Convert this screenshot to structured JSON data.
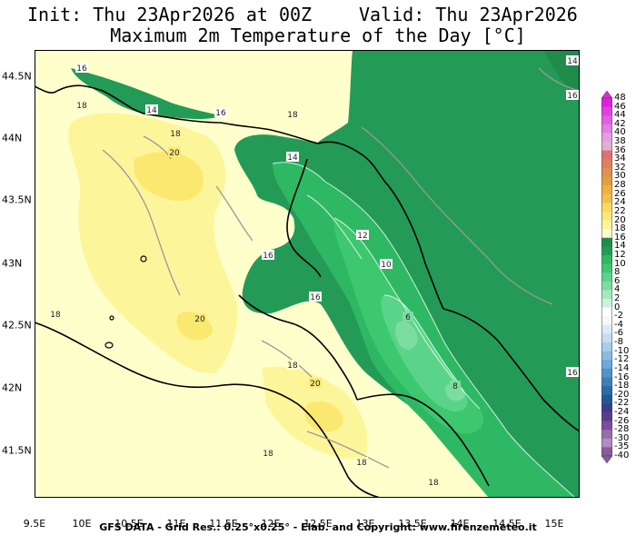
{
  "header": {
    "init": "Init: Thu 23Apr2026 at 00Z",
    "valid": "Valid: Thu 23Apr2026",
    "subtitle": "Maximum 2m Temperature of the Day [°C]"
  },
  "footer": {
    "credits": "GFS DATA - Grid Res.: 0.25°x0.25° - Elab. and Copyright: www.firenzemeteo.it"
  },
  "axes": {
    "x_ticks": [
      "9.5E",
      "10E",
      "10.5E",
      "11E",
      "11.5E",
      "12E",
      "12.5E",
      "13E",
      "13.5E",
      "14E",
      "14.5E",
      "15E"
    ],
    "y_ticks": [
      "44.5N",
      "44N",
      "43.5N",
      "43N",
      "42.5N",
      "42N",
      "41.5N"
    ]
  },
  "colorbar": {
    "labels": [
      "48",
      "46",
      "44",
      "42",
      "40",
      "38",
      "36",
      "34",
      "32",
      "30",
      "28",
      "26",
      "24",
      "22",
      "20",
      "18",
      "16",
      "14",
      "12",
      "10",
      "8",
      "6",
      "4",
      "2",
      "0",
      "-2",
      "-4",
      "-6",
      "-8",
      "-10",
      "-12",
      "-14",
      "-16",
      "-18",
      "-20",
      "-22",
      "-24",
      "-26",
      "-28",
      "-30",
      "-35",
      "-40"
    ],
    "colors": [
      "#e020e0",
      "#e040e0",
      "#e060e0",
      "#e080e0",
      "#e0a0e0",
      "#e0b0d0",
      "#e07070",
      "#e08060",
      "#e09050",
      "#e0a040",
      "#f0b040",
      "#f0c050",
      "#f7d860",
      "#fbe870",
      "#fdf59a",
      "#ffffcc",
      "#1f8c4a",
      "#239b57",
      "#2eb864",
      "#3dc76e",
      "#5ad48a",
      "#7ddda0",
      "#a4e8bd",
      "#ccf3da",
      "#ffffff",
      "#f2f7fb",
      "#dcebf6",
      "#c4def0",
      "#a8cde8",
      "#8cbbe0",
      "#6ea8d6",
      "#4f93c9",
      "#3b80bb",
      "#2a6ca8",
      "#1d5a94",
      "#3c3c8c",
      "#5a3c8c",
      "#7a4c9c",
      "#9a6cac",
      "#b08cc0",
      "#8a5a9a"
    ],
    "top_arrow_color": "#cc33cc",
    "bottom_arrow_color": "#8a5a9a"
  },
  "map": {
    "contour_labels": [
      "16",
      "14",
      "16",
      "18",
      "18",
      "20",
      "14",
      "18",
      "12",
      "10",
      "16",
      "16",
      "18",
      "20",
      "6",
      "18",
      "8",
      "20",
      "18",
      "18",
      "18",
      "16",
      "14",
      "16"
    ]
  }
}
